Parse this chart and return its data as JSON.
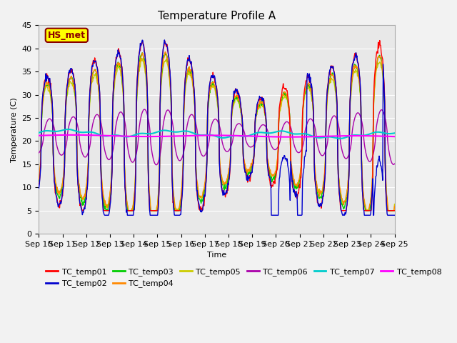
{
  "title": "Temperature Profile A",
  "xlabel": "Time",
  "ylabel": "Temperature (C)",
  "ylim": [
    0,
    45
  ],
  "x_tick_labels": [
    "Sep 10",
    "Sep 11",
    "Sep 12",
    "Sep 13",
    "Sep 14",
    "Sep 15",
    "Sep 16",
    "Sep 17",
    "Sep 18",
    "Sep 19",
    "Sep 20",
    "Sep 21",
    "Sep 22",
    "Sep 23",
    "Sep 24",
    "Sep 25"
  ],
  "annotation_label": "HS_met",
  "annotation_color": "#8B0000",
  "annotation_bg": "#FFFF00",
  "series_colors": {
    "TC_temp01": "#FF0000",
    "TC_temp02": "#0000CD",
    "TC_temp03": "#00CC00",
    "TC_temp04": "#FF8800",
    "TC_temp05": "#CCCC00",
    "TC_temp06": "#AA00AA",
    "TC_temp07": "#00CCCC",
    "TC_temp08": "#FF00FF"
  },
  "title_fontsize": 11,
  "legend_fontsize": 8,
  "tick_fontsize": 8
}
